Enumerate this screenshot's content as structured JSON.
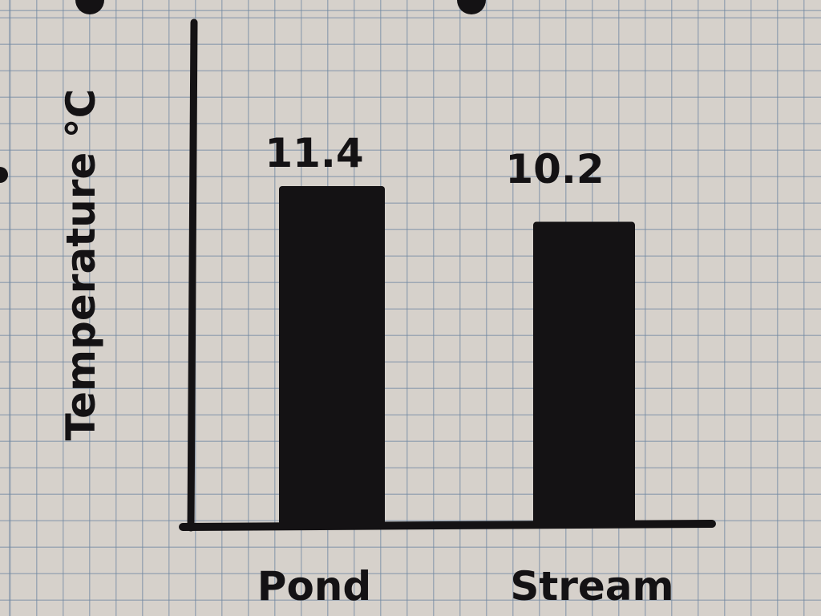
{
  "chart_data": {
    "type": "bar",
    "title": "",
    "xlabel": "",
    "ylabel": "Temperature °C",
    "categories": [
      "Pond",
      "Stream"
    ],
    "values": [
      11.4,
      10.2
    ],
    "data_labels": [
      "11.4",
      "10.2"
    ],
    "ylim": [
      0,
      12.5
    ],
    "grid": false,
    "bar_color": "#141214"
  }
}
